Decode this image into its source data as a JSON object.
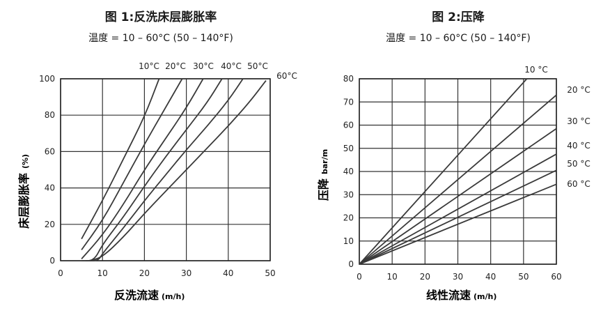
{
  "charts": [
    {
      "title": "图 1:反洗床层膨胀率",
      "subtitle": "温度 = 10 – 60°C (50 – 140°F)",
      "xlabel": "反洗流速",
      "xunit": "(m/h)",
      "ylabel": "床层膨胀率",
      "yunit": "(%)"
    },
    {
      "title": "图 2:压降",
      "subtitle": "温度 = 10 – 60°C (50 – 140°F)",
      "xlabel": "线性流速",
      "xunit": "(m/h)",
      "ylabel": "压降",
      "yunit": "bar/m"
    }
  ],
  "chart_data": [
    {
      "type": "line",
      "title": "图 1:反洗床层膨胀率",
      "xlabel": "反洗流速 (m/h)",
      "ylabel": "床层膨胀率 (%)",
      "xlim": [
        0,
        50
      ],
      "ylim": [
        0,
        100
      ],
      "xticks": [
        0,
        10,
        20,
        30,
        40,
        50
      ],
      "yticks": [
        0,
        20,
        40,
        60,
        80,
        100
      ],
      "grid": true,
      "series": [
        {
          "name": "10°C",
          "points": [
            [
              5,
              12
            ],
            [
              10,
              33
            ],
            [
              15,
              56
            ],
            [
              20,
              79
            ],
            [
              23.5,
              100
            ]
          ]
        },
        {
          "name": "20°C",
          "points": [
            [
              5,
              6
            ],
            [
              10,
              22
            ],
            [
              15,
              43
            ],
            [
              20,
              64
            ],
            [
              25,
              84
            ],
            [
              29,
              100
            ]
          ]
        },
        {
          "name": "30°C",
          "points": [
            [
              5,
              1
            ],
            [
              10,
              14
            ],
            [
              15,
              31
            ],
            [
              20,
              50
            ],
            [
              25,
              67
            ],
            [
              30,
              84
            ],
            [
              34,
              100
            ]
          ]
        },
        {
          "name": "40°C",
          "points": [
            [
              5,
              0
            ],
            [
              8,
              0
            ],
            [
              10,
              9
            ],
            [
              15,
              24
            ],
            [
              20,
              41
            ],
            [
              25,
              57
            ],
            [
              30,
              72
            ],
            [
              35,
              87
            ],
            [
              38.5,
              100
            ]
          ]
        },
        {
          "name": "50°C",
          "points": [
            [
              6,
              0
            ],
            [
              9,
              0
            ],
            [
              10,
              4
            ],
            [
              15,
              18
            ],
            [
              20,
              33
            ],
            [
              25,
              47
            ],
            [
              30,
              61
            ],
            [
              35,
              74
            ],
            [
              40,
              88
            ],
            [
              43.5,
              100
            ]
          ]
        },
        {
          "name": "60°C",
          "points": [
            [
              7,
              0
            ],
            [
              10,
              2
            ],
            [
              15,
              13
            ],
            [
              20,
              26
            ],
            [
              25,
              38
            ],
            [
              30,
              50
            ],
            [
              35,
              62
            ],
            [
              40,
              74
            ],
            [
              45,
              87
            ],
            [
              49,
              99
            ]
          ]
        }
      ]
    },
    {
      "type": "line",
      "title": "图 2:压降",
      "xlabel": "线性流速 (m/h)",
      "ylabel": "压降 bar/m",
      "xlim": [
        0,
        60
      ],
      "ylim": [
        0,
        80
      ],
      "xticks": [
        0,
        10,
        20,
        30,
        40,
        50,
        60
      ],
      "yticks": [
        0,
        10,
        20,
        30,
        40,
        50,
        60,
        70,
        80
      ],
      "grid": true,
      "series": [
        {
          "name": "10 °C",
          "points": [
            [
              0,
              0
            ],
            [
              51,
              80
            ]
          ]
        },
        {
          "name": "20 °C",
          "points": [
            [
              0,
              0
            ],
            [
              60,
              73
            ]
          ]
        },
        {
          "name": "30 °C",
          "points": [
            [
              0,
              0
            ],
            [
              60,
              58.5
            ]
          ]
        },
        {
          "name": "40 °C",
          "points": [
            [
              0,
              0
            ],
            [
              60,
              47.5
            ]
          ]
        },
        {
          "name": "50 °C",
          "points": [
            [
              0,
              0
            ],
            [
              60,
              40.5
            ]
          ]
        },
        {
          "name": "60 °C",
          "points": [
            [
              0,
              0
            ],
            [
              60,
              34.5
            ]
          ]
        }
      ]
    }
  ]
}
